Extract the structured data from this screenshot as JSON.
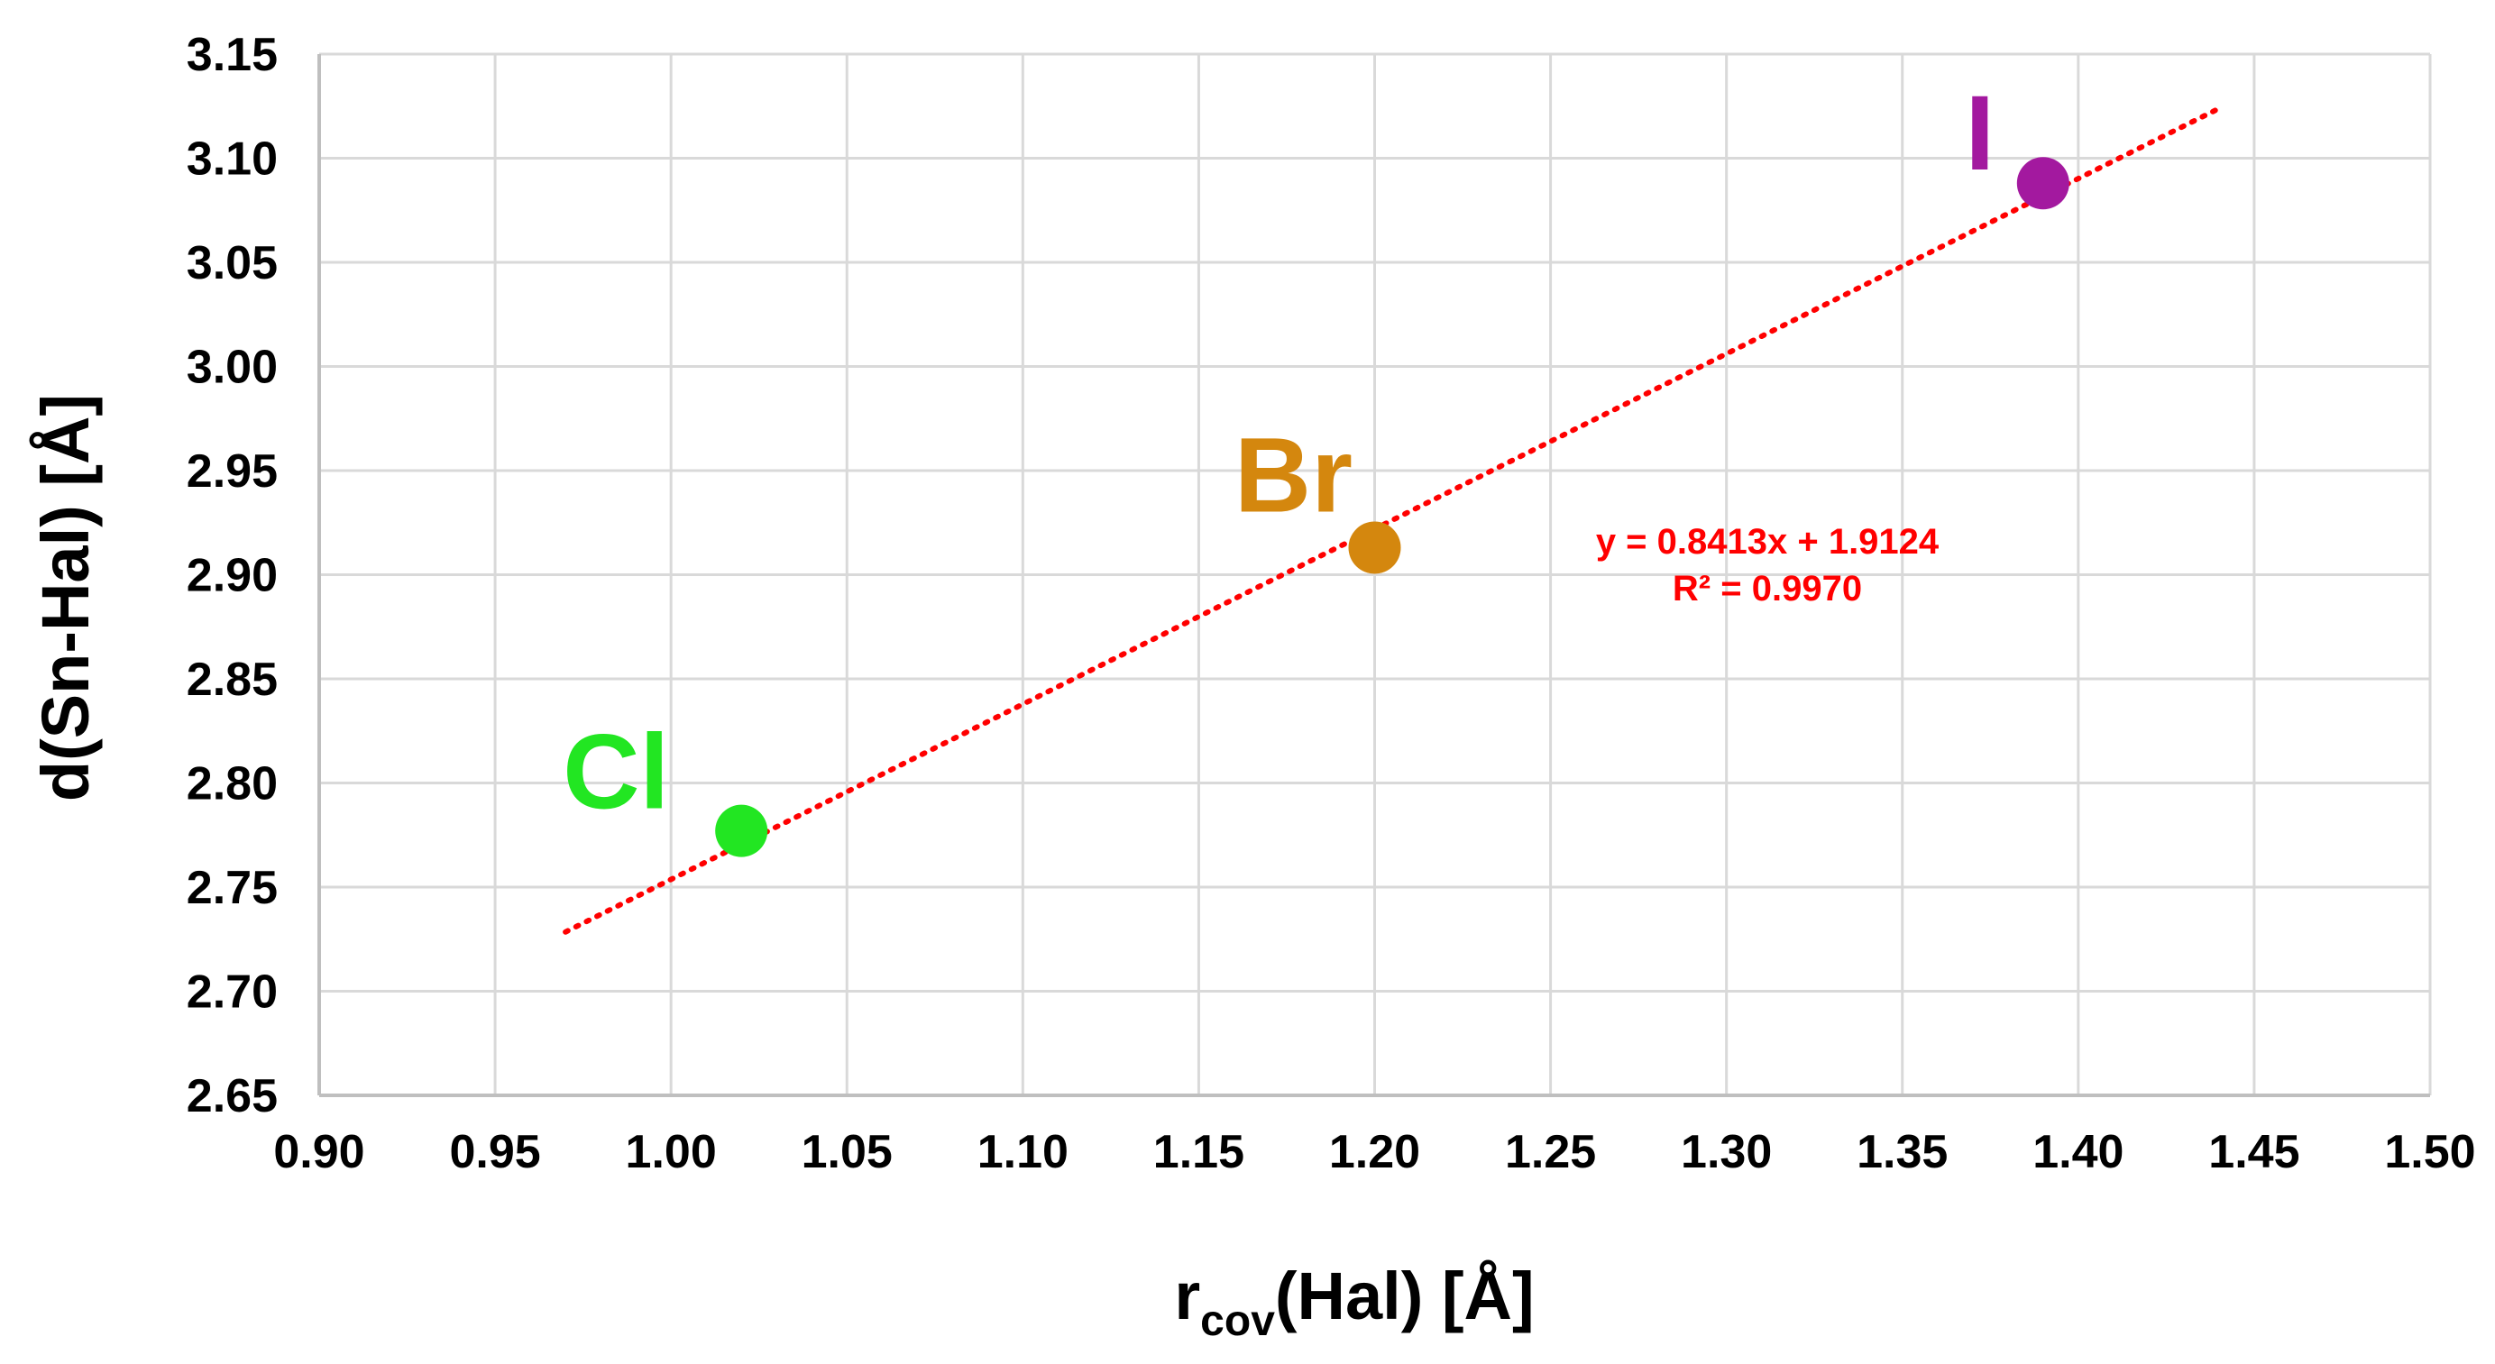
{
  "chart_data": {
    "type": "scatter",
    "xlabel": {
      "main": "r",
      "sub": "cov",
      "rest": "(Hal) [Å]"
    },
    "ylabel": "d(Sn-Hal) [Å]",
    "xlim": [
      0.9,
      1.5
    ],
    "ylim": [
      2.65,
      3.15
    ],
    "x_ticks": [
      "0.90",
      "0.95",
      "1.00",
      "1.05",
      "1.10",
      "1.15",
      "1.20",
      "1.25",
      "1.30",
      "1.35",
      "1.40",
      "1.45",
      "1.50"
    ],
    "y_ticks": [
      "2.65",
      "2.70",
      "2.75",
      "2.80",
      "2.85",
      "2.90",
      "2.95",
      "3.00",
      "3.05",
      "3.10",
      "3.15"
    ],
    "grid": true,
    "points": [
      {
        "label": "Cl",
        "x": 1.02,
        "y": 2.777,
        "color": "#22e622"
      },
      {
        "label": "Br",
        "x": 1.2,
        "y": 2.913,
        "color": "#d4870e"
      },
      {
        "label": "I",
        "x": 1.39,
        "y": 3.088,
        "color": "#a3199f"
      }
    ],
    "trendline": {
      "slope": 0.8413,
      "intercept": 1.9124,
      "x_range": [
        0.97,
        1.44
      ],
      "color": "#ff0000",
      "style": "dotted",
      "equation": "y = 0.8413x + 1.9124",
      "r_squared": "R² = 0.9970"
    }
  }
}
